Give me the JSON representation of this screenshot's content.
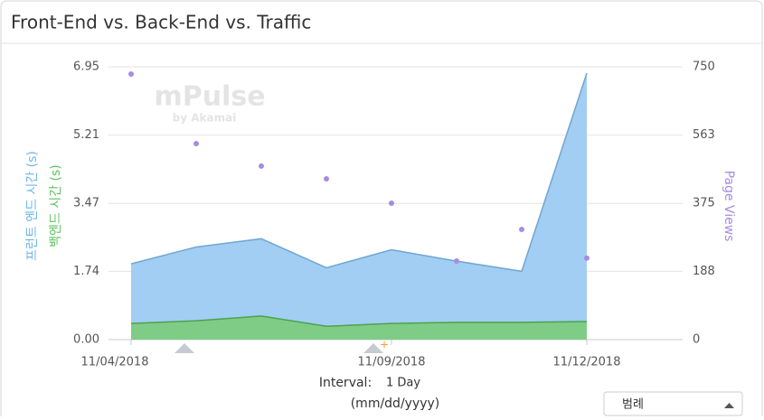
{
  "chart_data": {
    "type": "area",
    "title": "Front-End vs. Back-End vs. Traffic",
    "watermark": "mPulse",
    "watermark_sub": "by Akamai",
    "categories": [
      "11/04/2018",
      null,
      null,
      null,
      "11/09/2018",
      null,
      null,
      "11/12/2018"
    ],
    "series": [
      {
        "name": "프런트 엔드 시간 (s)",
        "color": "#9ccbf1",
        "values": [
          1.93,
          2.36,
          2.57,
          1.83,
          2.29,
          2.0,
          1.74,
          6.79
        ]
      },
      {
        "name": "백엔드 시간 (s)",
        "color": "#7dcb80",
        "values": [
          0.41,
          0.48,
          0.6,
          0.34,
          0.41,
          0.44,
          0.44,
          0.46
        ]
      },
      {
        "name": "Page Views",
        "color": "#a78ce2",
        "axis": "y2",
        "values": [
          730,
          539,
          477,
          442,
          375,
          216,
          303,
          224
        ]
      }
    ],
    "ylim": [
      0,
      6.95
    ],
    "yticks": [
      {
        "value": 0,
        "label": "0.00"
      },
      1.74,
      3.47,
      5.21,
      6.95
    ],
    "y2lim": [
      0,
      750
    ],
    "y2ticks": [
      0,
      188,
      375,
      563,
      750
    ],
    "interval_label": "Interval:",
    "interval_value": "1 Day",
    "date_format": "(mm/dd/yyyy)",
    "legend_button": "범례",
    "grid": true
  }
}
